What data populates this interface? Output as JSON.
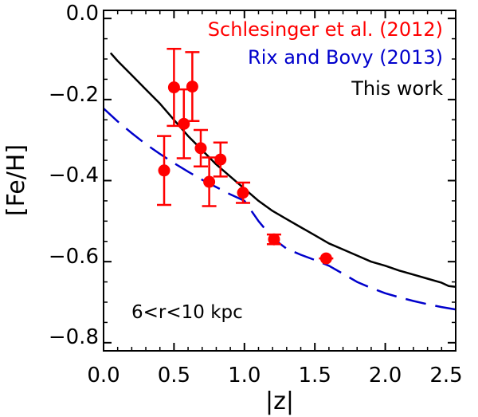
{
  "chart_data": {
    "type": "scatter",
    "xlabel": "|z|",
    "ylabel": "[Fe/H]",
    "xlim": [
      0.0,
      2.5
    ],
    "ylim": [
      -0.82,
      0.02
    ],
    "x_ticks": [
      "0.0",
      "0.5",
      "1.0",
      "1.5",
      "2.0",
      "2.5"
    ],
    "x_tick_values": [
      0.0,
      0.5,
      1.0,
      1.5,
      2.0,
      2.5
    ],
    "y_ticks": [
      "0.0",
      "−0.2",
      "−0.4",
      "−0.6",
      "−0.8"
    ],
    "y_tick_values": [
      0.0,
      -0.2,
      -0.4,
      -0.6,
      -0.8
    ],
    "annotation": "6<r<10 kpc",
    "colors": {
      "points": "#ff0000",
      "rix_bovy": "#0000cc",
      "this_work": "#000000"
    },
    "legend": [
      {
        "label": "Schlesinger et al. (2012)",
        "color": "#ff0000"
      },
      {
        "label": "Rix and Bovy (2013)",
        "color": "#0000cc"
      },
      {
        "label": "This work",
        "color": "#000000"
      }
    ],
    "series": [
      {
        "name": "Schlesinger et al. (2012)",
        "style": "points-with-errorbars",
        "points": [
          {
            "x": 0.43,
            "y": -0.375,
            "err": 0.085
          },
          {
            "x": 0.5,
            "y": -0.17,
            "err": 0.095
          },
          {
            "x": 0.57,
            "y": -0.26,
            "err": 0.085
          },
          {
            "x": 0.63,
            "y": -0.168,
            "err": 0.085
          },
          {
            "x": 0.69,
            "y": -0.32,
            "err": 0.045
          },
          {
            "x": 0.75,
            "y": -0.403,
            "err": 0.06
          },
          {
            "x": 0.83,
            "y": -0.348,
            "err": 0.042
          },
          {
            "x": 0.99,
            "y": -0.43,
            "err": 0.025
          },
          {
            "x": 1.21,
            "y": -0.545,
            "err": 0.012
          },
          {
            "x": 1.58,
            "y": -0.592,
            "err": 0.004
          }
        ]
      },
      {
        "name": "Rix and Bovy (2013)",
        "style": "dashed-line",
        "x": [
          0.0,
          0.1,
          0.2,
          0.3,
          0.4,
          0.5,
          0.6,
          0.7,
          0.8,
          0.9,
          1.0,
          1.1,
          1.2,
          1.3,
          1.4,
          1.5,
          1.6,
          1.7,
          1.8,
          1.9,
          2.0,
          2.1,
          2.2,
          2.3,
          2.4,
          2.5
        ],
        "y": [
          -0.222,
          -0.254,
          -0.283,
          -0.31,
          -0.334,
          -0.357,
          -0.378,
          -0.398,
          -0.416,
          -0.434,
          -0.45,
          -0.5,
          -0.542,
          -0.568,
          -0.583,
          -0.596,
          -0.61,
          -0.63,
          -0.65,
          -0.665,
          -0.678,
          -0.688,
          -0.697,
          -0.705,
          -0.712,
          -0.718
        ]
      },
      {
        "name": "This work",
        "style": "solid-line",
        "x": [
          0.05,
          0.1,
          0.2,
          0.3,
          0.4,
          0.5,
          0.6,
          0.7,
          0.8,
          0.9,
          1.0,
          1.1,
          1.2,
          1.3,
          1.4,
          1.5,
          1.6,
          1.7,
          1.8,
          1.9,
          2.0,
          2.1,
          2.2,
          2.3,
          2.4,
          2.45,
          2.5
        ],
        "y": [
          -0.085,
          -0.105,
          -0.14,
          -0.175,
          -0.21,
          -0.25,
          -0.29,
          -0.325,
          -0.36,
          -0.39,
          -0.42,
          -0.45,
          -0.475,
          -0.495,
          -0.515,
          -0.535,
          -0.555,
          -0.57,
          -0.585,
          -0.6,
          -0.61,
          -0.622,
          -0.632,
          -0.642,
          -0.652,
          -0.66,
          -0.662
        ]
      }
    ]
  }
}
